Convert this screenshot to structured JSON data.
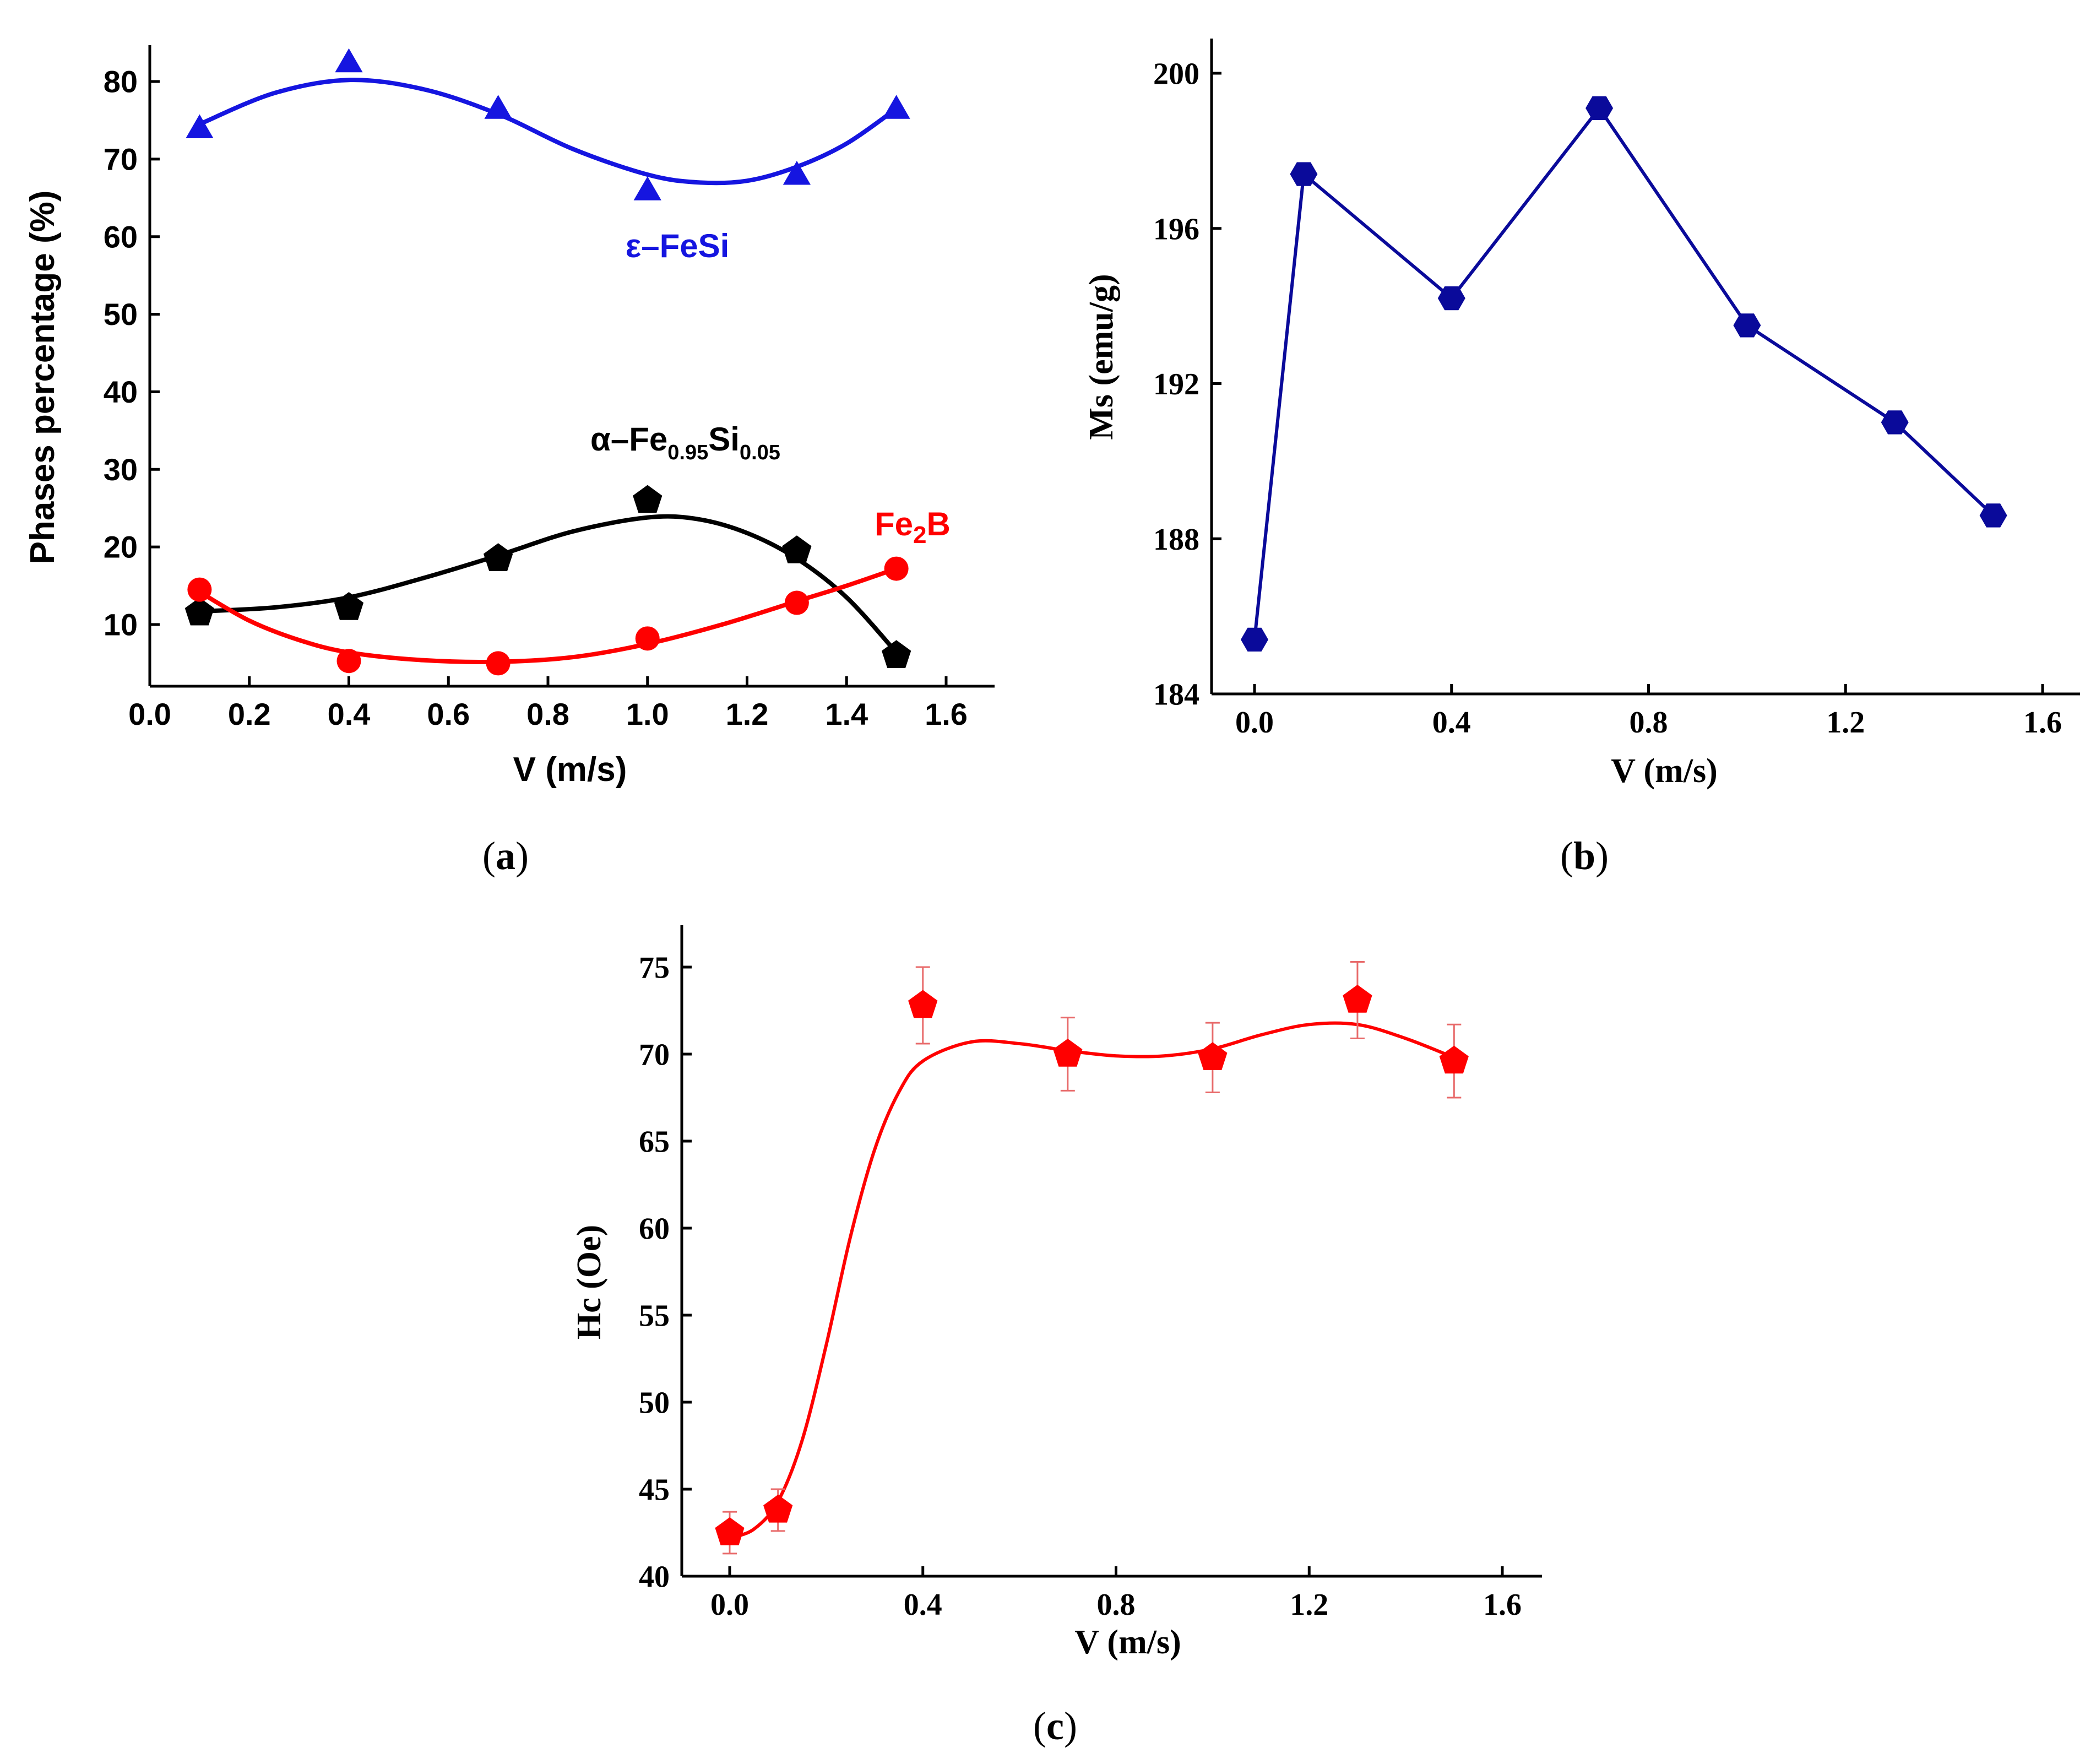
{
  "chart_data": [
    {
      "id": "a",
      "type": "scatter",
      "panel_label": "a",
      "title": "",
      "xlabel": "V (m/s)",
      "ylabel": "Phases percentage (%)",
      "xlim": [
        0.0,
        1.7
      ],
      "ylim": [
        3,
        85
      ],
      "xticks": [
        "0.0",
        "0.2",
        "0.4",
        "0.6",
        "0.8",
        "1.0",
        "1.2",
        "1.4",
        "1.6"
      ],
      "yticks": [
        "10",
        "20",
        "30",
        "40",
        "50",
        "60",
        "70",
        "80"
      ],
      "grid": false,
      "series": [
        {
          "name": "ε–FeSi",
          "color": "#1515e0",
          "marker": "triangle",
          "x": [
            0.1,
            0.4,
            0.7,
            1.0,
            1.3,
            1.5
          ],
          "values": [
            74,
            82.5,
            76.5,
            66,
            68,
            76.5
          ],
          "fit": [
            [
              0.1,
              74.5
            ],
            [
              0.25,
              78.5
            ],
            [
              0.4,
              80.2
            ],
            [
              0.55,
              79
            ],
            [
              0.7,
              75.8
            ],
            [
              0.85,
              71.3
            ],
            [
              1.0,
              68
            ],
            [
              1.1,
              67
            ],
            [
              1.2,
              67.2
            ],
            [
              1.3,
              69
            ],
            [
              1.4,
              72
            ],
            [
              1.5,
              76.5
            ]
          ]
        },
        {
          "name_main": "α–Fe",
          "name_sub1": "0.95",
          "name_mid": "Si",
          "name_sub2": "0.05",
          "color": "#000000",
          "marker": "pentagon",
          "x": [
            0.1,
            0.4,
            0.7,
            1.0,
            1.3,
            1.5
          ],
          "values": [
            11.5,
            12.2,
            18.5,
            26,
            19.5,
            6
          ],
          "fit": [
            [
              0.1,
              11.7
            ],
            [
              0.25,
              12.2
            ],
            [
              0.4,
              13.5
            ],
            [
              0.55,
              16
            ],
            [
              0.7,
              18.9
            ],
            [
              0.85,
              22
            ],
            [
              1.0,
              23.8
            ],
            [
              1.1,
              23.6
            ],
            [
              1.2,
              21.8
            ],
            [
              1.3,
              18.5
            ],
            [
              1.4,
              13.5
            ],
            [
              1.5,
              6.4
            ]
          ]
        },
        {
          "name_main": "Fe",
          "name_sub": "2",
          "name_tail": "B",
          "color": "#ff0000",
          "marker": "circle",
          "x": [
            0.1,
            0.4,
            0.7,
            1.0,
            1.3,
            1.5
          ],
          "values": [
            14.5,
            5.3,
            5,
            8.2,
            12.8,
            17.2
          ],
          "fit": [
            [
              0.1,
              14.2
            ],
            [
              0.2,
              10.5
            ],
            [
              0.3,
              8
            ],
            [
              0.4,
              6.4
            ],
            [
              0.55,
              5.4
            ],
            [
              0.7,
              5.2
            ],
            [
              0.85,
              5.8
            ],
            [
              1.0,
              7.5
            ],
            [
              1.15,
              10
            ],
            [
              1.3,
              13
            ],
            [
              1.4,
              15
            ],
            [
              1.5,
              17.2
            ]
          ]
        }
      ]
    },
    {
      "id": "b",
      "type": "line",
      "panel_label": "b",
      "title": "",
      "xlabel": "V (m/s)",
      "ylabel": "Ms (emu/g)",
      "xlim": [
        -0.1,
        1.65
      ],
      "ylim": [
        184,
        201
      ],
      "xticks": [
        "0.0",
        "0.4",
        "0.8",
        "1.2",
        "1.6"
      ],
      "yticks": [
        "184",
        "188",
        "192",
        "196",
        "200"
      ],
      "grid": false,
      "series": [
        {
          "name": "Ms",
          "color": "#0a0a9a",
          "marker": "hexagon",
          "x": [
            0.0,
            0.1,
            0.4,
            0.7,
            1.0,
            1.3,
            1.5
          ],
          "values": [
            185.4,
            197.4,
            194.2,
            199.1,
            193.5,
            191.0,
            188.6
          ]
        }
      ]
    },
    {
      "id": "c",
      "type": "scatter",
      "panel_label": "c",
      "title": "",
      "xlabel": "V (m/s)",
      "ylabel": "Hc (Oe)",
      "xlim": [
        -0.1,
        1.65
      ],
      "ylim": [
        40,
        77.5
      ],
      "xticks": [
        "0.0",
        "0.4",
        "0.8",
        "1.2",
        "1.6"
      ],
      "yticks": [
        "40",
        "45",
        "50",
        "55",
        "60",
        "65",
        "70",
        "75"
      ],
      "grid": false,
      "series": [
        {
          "name": "Hc",
          "color": "#ff0000",
          "marker": "pentagon",
          "x": [
            0.0,
            0.1,
            0.4,
            0.7,
            1.0,
            1.3,
            1.5
          ],
          "values": [
            42.5,
            43.8,
            72.8,
            70,
            69.8,
            73.1,
            69.6
          ],
          "errors": [
            1.2,
            1.2,
            2.2,
            2.1,
            2.0,
            2.2,
            2.1
          ],
          "fit": [
            [
              0.0,
              42.2
            ],
            [
              0.05,
              42.7
            ],
            [
              0.1,
              44.3
            ],
            [
              0.15,
              47.8
            ],
            [
              0.2,
              53.3
            ],
            [
              0.25,
              59.5
            ],
            [
              0.3,
              64.5
            ],
            [
              0.35,
              67.8
            ],
            [
              0.4,
              69.6
            ],
            [
              0.5,
              70.7
            ],
            [
              0.6,
              70.6
            ],
            [
              0.7,
              70.2
            ],
            [
              0.8,
              69.9
            ],
            [
              0.9,
              69.9
            ],
            [
              1.0,
              70.3
            ],
            [
              1.1,
              71.1
            ],
            [
              1.2,
              71.7
            ],
            [
              1.3,
              71.7
            ],
            [
              1.4,
              70.9
            ],
            [
              1.5,
              69.8
            ]
          ]
        }
      ]
    }
  ]
}
